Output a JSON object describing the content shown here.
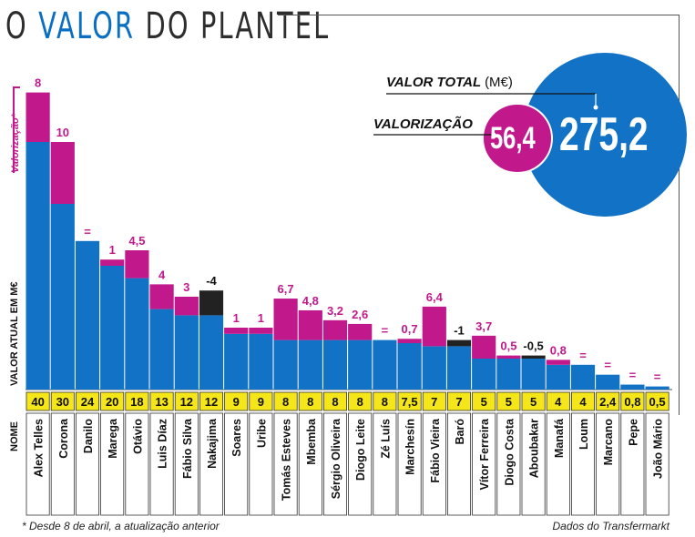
{
  "title": {
    "part1": "O ",
    "part2": "VALOR",
    "part3": " DO PLANTEL"
  },
  "summary": {
    "total_label": "VALOR TOTAL",
    "total_unit": "(M€)",
    "total_value": "275,2",
    "valorizacao_label": "VALORIZAÇÃO",
    "valorizacao_value": "56,4"
  },
  "legend_label": "Valorização*",
  "row_label_valor": "VALOR ATUAL EM M€",
  "row_label_nome": "NOME",
  "footnote": "* Desde 8 de abril, a atualização anterior",
  "source": "Dados do Transfermarkt",
  "colors": {
    "blue": "#1272c6",
    "magenta": "#c1188c",
    "black": "#222222",
    "yellow": "#f5e61a"
  },
  "chart_data": {
    "type": "bar",
    "stacked": true,
    "categories": [
      "Alex Telles",
      "Corona",
      "Danilo",
      "Marega",
      "Otávio",
      "Luis Díaz",
      "Fábio Silva",
      "Nakajima",
      "Soares",
      "Uribe",
      "Tomás Esteves",
      "Mbemba",
      "Sérgio Oliveira",
      "Diogo Leite",
      "Zé Luís",
      "Marchesín",
      "Fábio Vieira",
      "Baró",
      "Vítor Ferreira",
      "Diogo Costa",
      "Aboubakar",
      "Manafá",
      "Loum",
      "Marcano",
      "Pepe",
      "João Mário"
    ],
    "current_value_labels": [
      "40",
      "30",
      "24",
      "20",
      "18",
      "13",
      "12",
      "12",
      "9",
      "9",
      "8",
      "8",
      "8",
      "8",
      "8",
      "7,5",
      "7",
      "7",
      "5",
      "5",
      "5",
      "4",
      "4",
      "2,4",
      "0,8",
      "0,5"
    ],
    "current_values": [
      40,
      30,
      24,
      20,
      18,
      13,
      12,
      12,
      9,
      9,
      8,
      8,
      8,
      8,
      8,
      7.5,
      7,
      7,
      5,
      5,
      5,
      4,
      4,
      2.4,
      0.8,
      0.5
    ],
    "change_labels": [
      "8",
      "10",
      "=",
      "1",
      "4,5",
      "4",
      "3",
      "-4",
      "1",
      "1",
      "6,7",
      "4,8",
      "3,2",
      "2,6",
      "=",
      "0,7",
      "6,4",
      "-1",
      "3,7",
      "0,5",
      "-0,5",
      "0,8",
      "=",
      "=",
      "=",
      "="
    ],
    "change_values": [
      8,
      10,
      0,
      1,
      4.5,
      4,
      3,
      -4,
      1,
      1,
      6.7,
      4.8,
      3.2,
      2.6,
      0,
      0.7,
      6.4,
      -1,
      3.7,
      0.5,
      -0.5,
      0.8,
      0,
      0,
      0,
      0
    ],
    "ylabel": "VALOR ATUAL EM M€",
    "series_label": "Valorização*"
  }
}
